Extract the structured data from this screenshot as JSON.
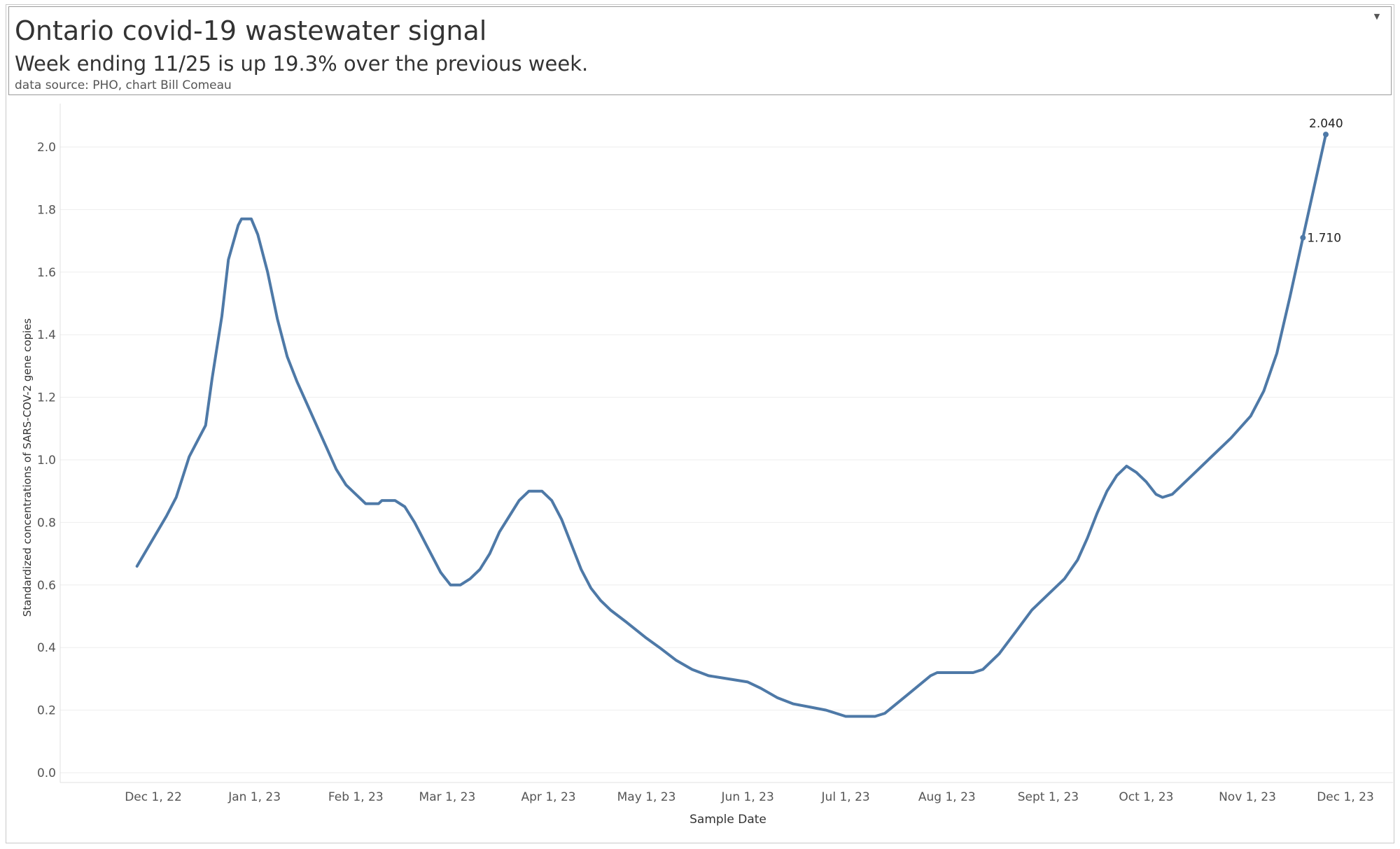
{
  "header": {
    "title": "Ontario covid-19 wastewater signal",
    "subtitle": "Week ending 11/25 is up 19.3% over the previous week.",
    "source": "data source: PHO, chart Bill Comeau"
  },
  "colors": {
    "line": "#4e79a7",
    "grid": "#eeeeee",
    "axis_text": "#555555",
    "label_text": "#222222"
  },
  "chart_data": {
    "type": "line",
    "title": "Ontario covid-19 wastewater signal",
    "subtitle": "Week ending 11/25 is up 19.3% over the previous week.",
    "xlabel": "Sample Date",
    "ylabel": "Standardized concentrations of SARS-COV-2 gene copies",
    "x_ticks": [
      "Dec 1, 22",
      "Jan 1, 23",
      "Feb 1, 23",
      "Mar 1, 23",
      "Apr 1, 23",
      "May 1, 23",
      "Jun 1, 23",
      "Jul 1, 23",
      "Aug 1, 23",
      "Sept 1, 23",
      "Oct 1, 23",
      "Nov 1, 23",
      "Dec 1, 23"
    ],
    "x_tick_dates": [
      "2022-12-01",
      "2023-01-01",
      "2023-02-01",
      "2023-03-01",
      "2023-04-01",
      "2023-05-01",
      "2023-06-01",
      "2023-07-01",
      "2023-08-01",
      "2023-09-01",
      "2023-10-01",
      "2023-11-01",
      "2023-12-01"
    ],
    "y_ticks": [
      "0.0",
      "0.2",
      "0.4",
      "0.6",
      "0.8",
      "1.0",
      "1.2",
      "1.4",
      "1.6",
      "1.8",
      "2.0"
    ],
    "ylim": [
      0,
      2.2
    ],
    "grid": true,
    "series": [
      {
        "points": [
          {
            "x": "2022-11-26",
            "y": 0.66
          },
          {
            "x": "2022-12-05",
            "y": 0.82
          },
          {
            "x": "2022-12-08",
            "y": 0.88
          },
          {
            "x": "2022-12-12",
            "y": 1.01
          },
          {
            "x": "2022-12-15",
            "y": 1.07
          },
          {
            "x": "2022-12-17",
            "y": 1.11
          },
          {
            "x": "2022-12-19",
            "y": 1.26
          },
          {
            "x": "2022-12-22",
            "y": 1.46
          },
          {
            "x": "2022-12-24",
            "y": 1.64
          },
          {
            "x": "2022-12-27",
            "y": 1.75
          },
          {
            "x": "2022-12-28",
            "y": 1.77
          },
          {
            "x": "2022-12-31",
            "y": 1.77
          },
          {
            "x": "2023-01-02",
            "y": 1.72
          },
          {
            "x": "2023-01-05",
            "y": 1.6
          },
          {
            "x": "2023-01-08",
            "y": 1.45
          },
          {
            "x": "2023-01-11",
            "y": 1.33
          },
          {
            "x": "2023-01-14",
            "y": 1.25
          },
          {
            "x": "2023-01-17",
            "y": 1.18
          },
          {
            "x": "2023-01-20",
            "y": 1.11
          },
          {
            "x": "2023-01-23",
            "y": 1.04
          },
          {
            "x": "2023-01-26",
            "y": 0.97
          },
          {
            "x": "2023-01-29",
            "y": 0.92
          },
          {
            "x": "2023-02-01",
            "y": 0.89
          },
          {
            "x": "2023-02-03",
            "y": 0.87
          },
          {
            "x": "2023-02-04",
            "y": 0.86
          },
          {
            "x": "2023-02-08",
            "y": 0.86
          },
          {
            "x": "2023-02-09",
            "y": 0.87
          },
          {
            "x": "2023-02-13",
            "y": 0.87
          },
          {
            "x": "2023-02-16",
            "y": 0.85
          },
          {
            "x": "2023-02-19",
            "y": 0.8
          },
          {
            "x": "2023-02-23",
            "y": 0.72
          },
          {
            "x": "2023-02-27",
            "y": 0.64
          },
          {
            "x": "2023-03-02",
            "y": 0.6
          },
          {
            "x": "2023-03-05",
            "y": 0.6
          },
          {
            "x": "2023-03-08",
            "y": 0.62
          },
          {
            "x": "2023-03-11",
            "y": 0.65
          },
          {
            "x": "2023-03-14",
            "y": 0.7
          },
          {
            "x": "2023-03-17",
            "y": 0.77
          },
          {
            "x": "2023-03-20",
            "y": 0.82
          },
          {
            "x": "2023-03-23",
            "y": 0.87
          },
          {
            "x": "2023-03-26",
            "y": 0.9
          },
          {
            "x": "2023-03-30",
            "y": 0.9
          },
          {
            "x": "2023-04-02",
            "y": 0.87
          },
          {
            "x": "2023-04-05",
            "y": 0.81
          },
          {
            "x": "2023-04-08",
            "y": 0.73
          },
          {
            "x": "2023-04-11",
            "y": 0.65
          },
          {
            "x": "2023-04-14",
            "y": 0.59
          },
          {
            "x": "2023-04-17",
            "y": 0.55
          },
          {
            "x": "2023-04-20",
            "y": 0.52
          },
          {
            "x": "2023-04-25",
            "y": 0.48
          },
          {
            "x": "2023-05-01",
            "y": 0.43
          },
          {
            "x": "2023-05-05",
            "y": 0.4
          },
          {
            "x": "2023-05-10",
            "y": 0.36
          },
          {
            "x": "2023-05-15",
            "y": 0.33
          },
          {
            "x": "2023-05-20",
            "y": 0.31
          },
          {
            "x": "2023-05-26",
            "y": 0.3
          },
          {
            "x": "2023-06-01",
            "y": 0.29
          },
          {
            "x": "2023-06-05",
            "y": 0.27
          },
          {
            "x": "2023-06-10",
            "y": 0.24
          },
          {
            "x": "2023-06-15",
            "y": 0.22
          },
          {
            "x": "2023-06-20",
            "y": 0.21
          },
          {
            "x": "2023-06-25",
            "y": 0.2
          },
          {
            "x": "2023-07-01",
            "y": 0.18
          },
          {
            "x": "2023-07-10",
            "y": 0.18
          },
          {
            "x": "2023-07-13",
            "y": 0.19
          },
          {
            "x": "2023-07-20",
            "y": 0.25
          },
          {
            "x": "2023-07-27",
            "y": 0.31
          },
          {
            "x": "2023-07-29",
            "y": 0.32
          },
          {
            "x": "2023-08-09",
            "y": 0.32
          },
          {
            "x": "2023-08-12",
            "y": 0.33
          },
          {
            "x": "2023-08-17",
            "y": 0.38
          },
          {
            "x": "2023-08-22",
            "y": 0.45
          },
          {
            "x": "2023-08-27",
            "y": 0.52
          },
          {
            "x": "2023-09-01",
            "y": 0.57
          },
          {
            "x": "2023-09-06",
            "y": 0.62
          },
          {
            "x": "2023-09-10",
            "y": 0.68
          },
          {
            "x": "2023-09-13",
            "y": 0.75
          },
          {
            "x": "2023-09-16",
            "y": 0.83
          },
          {
            "x": "2023-09-19",
            "y": 0.9
          },
          {
            "x": "2023-09-22",
            "y": 0.95
          },
          {
            "x": "2023-09-25",
            "y": 0.98
          },
          {
            "x": "2023-09-28",
            "y": 0.96
          },
          {
            "x": "2023-10-01",
            "y": 0.93
          },
          {
            "x": "2023-10-04",
            "y": 0.89
          },
          {
            "x": "2023-10-06",
            "y": 0.88
          },
          {
            "x": "2023-10-09",
            "y": 0.89
          },
          {
            "x": "2023-10-15",
            "y": 0.95
          },
          {
            "x": "2023-10-21",
            "y": 1.01
          },
          {
            "x": "2023-10-27",
            "y": 1.07
          },
          {
            "x": "2023-11-02",
            "y": 1.14
          },
          {
            "x": "2023-11-06",
            "y": 1.22
          },
          {
            "x": "2023-11-10",
            "y": 1.34
          },
          {
            "x": "2023-11-14",
            "y": 1.52
          },
          {
            "x": "2023-11-18",
            "y": 1.71
          },
          {
            "x": "2023-11-25",
            "y": 2.04
          }
        ]
      }
    ],
    "annotations": [
      {
        "x": "2023-11-18",
        "y": 1.71,
        "label": "1.710"
      },
      {
        "x": "2023-11-25",
        "y": 2.04,
        "label": "2.040"
      }
    ]
  }
}
